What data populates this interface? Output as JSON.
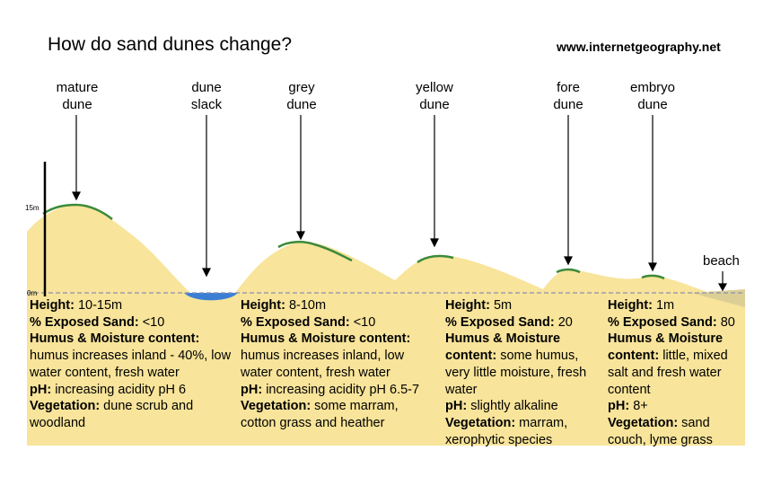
{
  "title": "How do sand dunes change?",
  "website": "www.internetgeography.net",
  "colors": {
    "sand": "#f8e49a",
    "vegetation": "#3c8a3a",
    "water": "#3b7fd4",
    "beach": "#dccf96",
    "baseline": "#8a8fb5"
  },
  "axis": {
    "top_label": "15m",
    "bottom_label": "0m"
  },
  "labels": {
    "mature": [
      "mature",
      "dune"
    ],
    "slack": [
      "dune",
      "slack"
    ],
    "grey": [
      "grey",
      "dune"
    ],
    "yellow": [
      "yellow",
      "dune"
    ],
    "fore": [
      "fore",
      "dune"
    ],
    "embryo": [
      "embryo",
      "dune"
    ],
    "beach": "beach"
  },
  "columns": [
    {
      "height_label": "Height:",
      "height": " 10-15m",
      "sand_label": "% Exposed Sand:",
      "sand": " <10",
      "humus_label": "Humus & Moisture content:",
      "humus": "humus increases inland - 40%, low water content, fresh water",
      "ph_label": "pH:",
      "ph": " increasing acidity pH 6",
      "veg_label": "Vegetation:",
      "veg": " dune scrub and woodland"
    },
    {
      "height_label": "Height:",
      "height": " 8-10m",
      "sand_label": "% Exposed Sand:",
      "sand": " <10",
      "humus_label": "Humus & Moisture content:",
      "humus": "humus increases inland, low water content, fresh water",
      "ph_label": "pH:",
      "ph": " increasing acidity pH 6.5-7",
      "veg_label": "Vegetation:",
      "veg": " some marram, cotton grass and heather"
    },
    {
      "height_label": "Height:",
      "height": " 5m",
      "sand_label": "% Exposed Sand:",
      "sand": " 20",
      "humus_label": "Humus & Moisture content:",
      "humus": " some humus, very little moisture, fresh water",
      "ph_label": "pH:",
      "ph": " slightly alkaline",
      "veg_label": "Vegetation:",
      "veg": " marram, xerophytic species"
    },
    {
      "height_label": "Height:",
      "height": " 1m",
      "sand_label": "% Exposed Sand:",
      "sand": " 80",
      "humus_label": "Humus & Moisture content:",
      "humus": " little, mixed salt and fresh water content",
      "ph_label": "pH:",
      "ph": " 8+",
      "veg_label": "Vegetation:",
      "veg": " sand couch, lyme grass"
    }
  ]
}
